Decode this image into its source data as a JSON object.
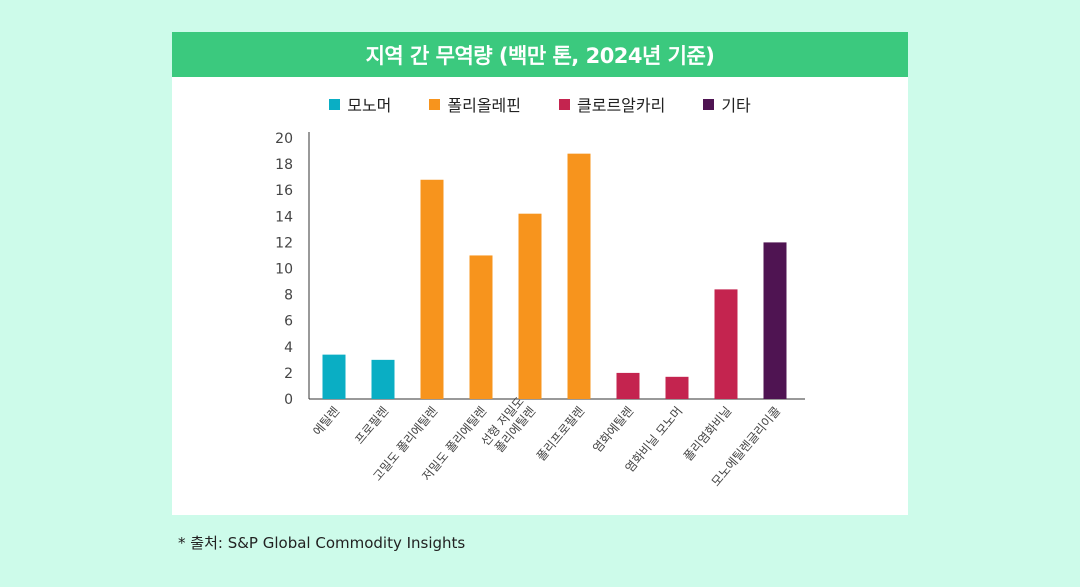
{
  "chart_data": {
    "type": "bar",
    "title": "지역 간 무역량 (백만 톤, 2024년 기준)",
    "legend": [
      {
        "name": "모노머",
        "color": "#0aaec4"
      },
      {
        "name": "폴리올레핀",
        "color": "#f7941d"
      },
      {
        "name": "클로르알카리",
        "color": "#c4244f"
      },
      {
        "name": "기타",
        "color": "#4f1452"
      }
    ],
    "categories": [
      "에틸렌",
      "프로필렌",
      "고밀도 폴리에틸렌",
      "저밀도 폴리에틸렌",
      "선형 저밀도 폴리에틸렌",
      "폴리프로필렌",
      "염화에틸렌",
      "염화비닐 모노머",
      "폴리염화비닐",
      "모노에틸렌글리이콜"
    ],
    "category_lines": [
      [
        "에틸렌"
      ],
      [
        "프로필렌"
      ],
      [
        "고밀도 폴리에틸렌"
      ],
      [
        "저밀도 폴리에틸렌"
      ],
      [
        "선형 저밀도",
        "폴리에틸렌"
      ],
      [
        "폴리프로필렌"
      ],
      [
        "염화에틸렌"
      ],
      [
        "염화비닐 모노머"
      ],
      [
        "폴리염화비닐"
      ],
      [
        "모노에틸렌글리이콜"
      ]
    ],
    "values": [
      3.4,
      3.0,
      16.8,
      11.0,
      14.2,
      18.8,
      2.0,
      1.7,
      8.4,
      12.0
    ],
    "groups": [
      "모노머",
      "모노머",
      "폴리올레핀",
      "폴리올레핀",
      "폴리올레핀",
      "폴리올레핀",
      "클로르알카리",
      "클로르알카리",
      "클로르알카리",
      "기타"
    ],
    "ylim": [
      0,
      20
    ],
    "yticks": [
      0,
      2,
      4,
      6,
      8,
      10,
      12,
      14,
      16,
      18,
      20
    ],
    "xlabel": "",
    "ylabel": ""
  },
  "source": "* 출처: S&P Global Commodity Insights"
}
